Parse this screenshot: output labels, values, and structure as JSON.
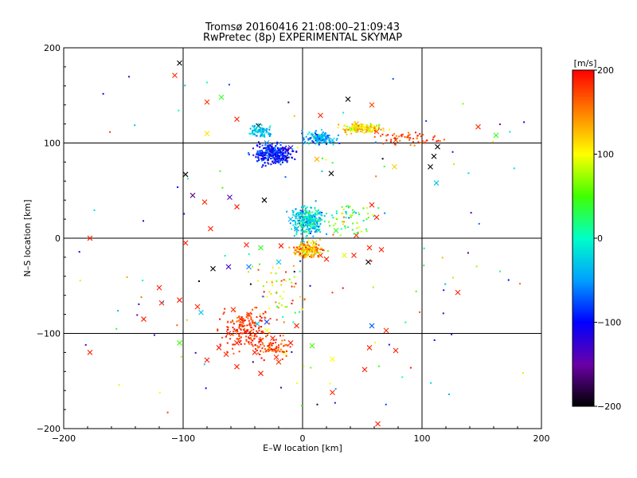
{
  "chart_data": {
    "type": "scatter",
    "title": "Tromsø 20160416 21:08:00–21:09:43",
    "subtitle": "RwPretec (8p) EXPERIMENTAL SKYMAP",
    "xlabel": "E–W location [km]",
    "ylabel": "N–S location [km]",
    "xlim": [
      -200,
      200
    ],
    "ylim": [
      -200,
      200
    ],
    "xticks": [
      "−200",
      "−100",
      "0",
      "100",
      "200"
    ],
    "yticks": [
      "−200",
      "−100",
      "0",
      "100",
      "200"
    ],
    "grid_lines": [
      -100,
      0,
      100
    ],
    "colorbar": {
      "label": "[m/s]",
      "range": [
        -200,
        200
      ],
      "ticks": [
        "200",
        "100",
        "0",
        "−100",
        "−200"
      ],
      "colormap": "rainbow (black → purple → blue → cyan → green → yellow → red)"
    },
    "series_note": "Velocity-colored meteor detections; large markers are crosses, small markers are dots; values approximated from the figure",
    "points": [
      {
        "x": -103,
        "y": 184,
        "v": -200,
        "m": "x"
      },
      {
        "x": -107,
        "y": 171,
        "v": 185,
        "m": "x"
      },
      {
        "x": -80,
        "y": 143,
        "v": 180,
        "m": "x"
      },
      {
        "x": -68,
        "y": 148,
        "v": 40,
        "m": "x"
      },
      {
        "x": -55,
        "y": 125,
        "v": 190,
        "m": "x"
      },
      {
        "x": -37,
        "y": 118,
        "v": -200,
        "m": "x"
      },
      {
        "x": -80,
        "y": 110,
        "v": 110,
        "m": "x"
      },
      {
        "x": -98,
        "y": 67,
        "v": -200,
        "m": "x"
      },
      {
        "x": 38,
        "y": 146,
        "v": -200,
        "m": "x"
      },
      {
        "x": 58,
        "y": 140,
        "v": 170,
        "m": "x"
      },
      {
        "x": 15,
        "y": 129,
        "v": 185,
        "m": "x"
      },
      {
        "x": 147,
        "y": 117,
        "v": 180,
        "m": "x"
      },
      {
        "x": 162,
        "y": 108,
        "v": 40,
        "m": "x"
      },
      {
        "x": 113,
        "y": 96,
        "v": -200,
        "m": "x"
      },
      {
        "x": 110,
        "y": 86,
        "v": -200,
        "m": "x"
      },
      {
        "x": 107,
        "y": 75,
        "v": -200,
        "m": "x"
      },
      {
        "x": 112,
        "y": 58,
        "v": -30,
        "m": "x"
      },
      {
        "x": 78,
        "y": 103,
        "v": 175,
        "m": "x"
      },
      {
        "x": 62,
        "y": 112,
        "v": 180,
        "m": "x"
      },
      {
        "x": 24,
        "y": 68,
        "v": -200,
        "m": "x"
      },
      {
        "x": 12,
        "y": 83,
        "v": 130,
        "m": "x"
      },
      {
        "x": 77,
        "y": 75,
        "v": 120,
        "m": "x"
      },
      {
        "x": -32,
        "y": 40,
        "v": -200,
        "m": "x"
      },
      {
        "x": -61,
        "y": 43,
        "v": -140,
        "m": "x"
      },
      {
        "x": -82,
        "y": 38,
        "v": 185,
        "m": "x"
      },
      {
        "x": -92,
        "y": 45,
        "v": -160,
        "m": "x"
      },
      {
        "x": -55,
        "y": 33,
        "v": 190,
        "m": "x"
      },
      {
        "x": -77,
        "y": 10,
        "v": 185,
        "m": "x"
      },
      {
        "x": -178,
        "y": 0,
        "v": 190,
        "m": "x"
      },
      {
        "x": -98,
        "y": -5,
        "v": 190,
        "m": "x"
      },
      {
        "x": -47,
        "y": -7,
        "v": 190,
        "m": "x"
      },
      {
        "x": -62,
        "y": -30,
        "v": -130,
        "m": "x"
      },
      {
        "x": -75,
        "y": -32,
        "v": -200,
        "m": "x"
      },
      {
        "x": 56,
        "y": -10,
        "v": 185,
        "m": "x"
      },
      {
        "x": 43,
        "y": -18,
        "v": 190,
        "m": "x"
      },
      {
        "x": 58,
        "y": 35,
        "v": 185,
        "m": "x"
      },
      {
        "x": 62,
        "y": 22,
        "v": 190,
        "m": "x"
      },
      {
        "x": 45,
        "y": 3,
        "v": 185,
        "m": "x"
      },
      {
        "x": 35,
        "y": -18,
        "v": 90,
        "m": "x"
      },
      {
        "x": 55,
        "y": -25,
        "v": -200,
        "m": "x"
      },
      {
        "x": 66,
        "y": -12,
        "v": 190,
        "m": "x"
      },
      {
        "x": 130,
        "y": -57,
        "v": 185,
        "m": "x"
      },
      {
        "x": 58,
        "y": -92,
        "v": -70,
        "m": "x"
      },
      {
        "x": 70,
        "y": -97,
        "v": 185,
        "m": "x"
      },
      {
        "x": 78,
        "y": -118,
        "v": 190,
        "m": "x"
      },
      {
        "x": 56,
        "y": -115,
        "v": 185,
        "m": "x"
      },
      {
        "x": 25,
        "y": -127,
        "v": 100,
        "m": "x"
      },
      {
        "x": 52,
        "y": -138,
        "v": 190,
        "m": "x"
      },
      {
        "x": 25,
        "y": -162,
        "v": 185,
        "m": "x"
      },
      {
        "x": 63,
        "y": -195,
        "v": 190,
        "m": "x"
      },
      {
        "x": -120,
        "y": -52,
        "v": 190,
        "m": "x"
      },
      {
        "x": -133,
        "y": -85,
        "v": 190,
        "m": "x"
      },
      {
        "x": -118,
        "y": -68,
        "v": 185,
        "m": "x"
      },
      {
        "x": -103,
        "y": -65,
        "v": 190,
        "m": "x"
      },
      {
        "x": -88,
        "y": -72,
        "v": 185,
        "m": "x"
      },
      {
        "x": -85,
        "y": -78,
        "v": -30,
        "m": "x"
      },
      {
        "x": -178,
        "y": -120,
        "v": 190,
        "m": "x"
      },
      {
        "x": -103,
        "y": -110,
        "v": 50,
        "m": "x"
      },
      {
        "x": -62,
        "y": -100,
        "v": 185,
        "m": "x"
      },
      {
        "x": -70,
        "y": -115,
        "v": 190,
        "m": "x"
      },
      {
        "x": -64,
        "y": -122,
        "v": 185,
        "m": "x"
      },
      {
        "x": -55,
        "y": -110,
        "v": 190,
        "m": "x"
      },
      {
        "x": -48,
        "y": -98,
        "v": 185,
        "m": "x"
      },
      {
        "x": -40,
        "y": -120,
        "v": 190,
        "m": "x"
      },
      {
        "x": -35,
        "y": -108,
        "v": 185,
        "m": "x"
      },
      {
        "x": -28,
        "y": -115,
        "v": 120,
        "m": "x"
      },
      {
        "x": -22,
        "y": -125,
        "v": 185,
        "m": "x"
      },
      {
        "x": -25,
        "y": -105,
        "v": 190,
        "m": "x"
      },
      {
        "x": -30,
        "y": -97,
        "v": 100,
        "m": "x"
      },
      {
        "x": -30,
        "y": -88,
        "v": -80,
        "m": "x"
      },
      {
        "x": -38,
        "y": -90,
        "v": -30,
        "m": "x"
      },
      {
        "x": -45,
        "y": -80,
        "v": 185,
        "m": "x"
      },
      {
        "x": -52,
        "y": -85,
        "v": 190,
        "m": "x"
      },
      {
        "x": -58,
        "y": -75,
        "v": 185,
        "m": "x"
      },
      {
        "x": -80,
        "y": -128,
        "v": 190,
        "m": "x"
      },
      {
        "x": -55,
        "y": -135,
        "v": 185,
        "m": "x"
      },
      {
        "x": -35,
        "y": -142,
        "v": 190,
        "m": "x"
      },
      {
        "x": -20,
        "y": -130,
        "v": 185,
        "m": "x"
      },
      {
        "x": -15,
        "y": -120,
        "v": 100,
        "m": "x"
      },
      {
        "x": -10,
        "y": -110,
        "v": 190,
        "m": "x"
      },
      {
        "x": 8,
        "y": -113,
        "v": 50,
        "m": "x"
      },
      {
        "x": -5,
        "y": -92,
        "v": 185,
        "m": "x"
      },
      {
        "x": -45,
        "y": -30,
        "v": -60,
        "m": "x"
      },
      {
        "x": -20,
        "y": -25,
        "v": -30,
        "m": "x"
      },
      {
        "x": -35,
        "y": -10,
        "v": 40,
        "m": "x"
      },
      {
        "x": -18,
        "y": -8,
        "v": 190,
        "m": "x"
      },
      {
        "x": 5,
        "y": -12,
        "v": 190,
        "m": "x"
      },
      {
        "x": 15,
        "y": -18,
        "v": 185,
        "m": "x"
      },
      {
        "x": 20,
        "y": -22,
        "v": 190,
        "m": "x"
      },
      {
        "x": 10,
        "y": -5,
        "v": 120,
        "m": "x"
      },
      {
        "x": 0,
        "y": -2,
        "v": -30,
        "m": "x"
      },
      {
        "x": -5,
        "y": 10,
        "v": -60,
        "m": "x"
      },
      {
        "x": 8,
        "y": 18,
        "v": 40,
        "m": "x"
      },
      {
        "x": 12,
        "y": 28,
        "v": 20,
        "m": "x"
      },
      {
        "x": -10,
        "y": 20,
        "v": -40,
        "m": "x"
      },
      {
        "x": 28,
        "y": 8,
        "v": 40,
        "m": "x"
      },
      {
        "x": -25,
        "y": 90,
        "v": -100,
        "m": "x"
      },
      {
        "x": -30,
        "y": 100,
        "v": -60,
        "m": "x"
      },
      {
        "x": -10,
        "y": 95,
        "v": -120,
        "m": "x"
      },
      {
        "x": 18,
        "y": 108,
        "v": -40,
        "m": "x"
      },
      {
        "x": 25,
        "y": 103,
        "v": -30,
        "m": "x"
      },
      {
        "x": 50,
        "y": 118,
        "v": 100,
        "m": "x"
      },
      {
        "x": 45,
        "y": 120,
        "v": 140,
        "m": "x"
      },
      {
        "x": 60,
        "y": 115,
        "v": 110,
        "m": "x"
      }
    ]
  }
}
